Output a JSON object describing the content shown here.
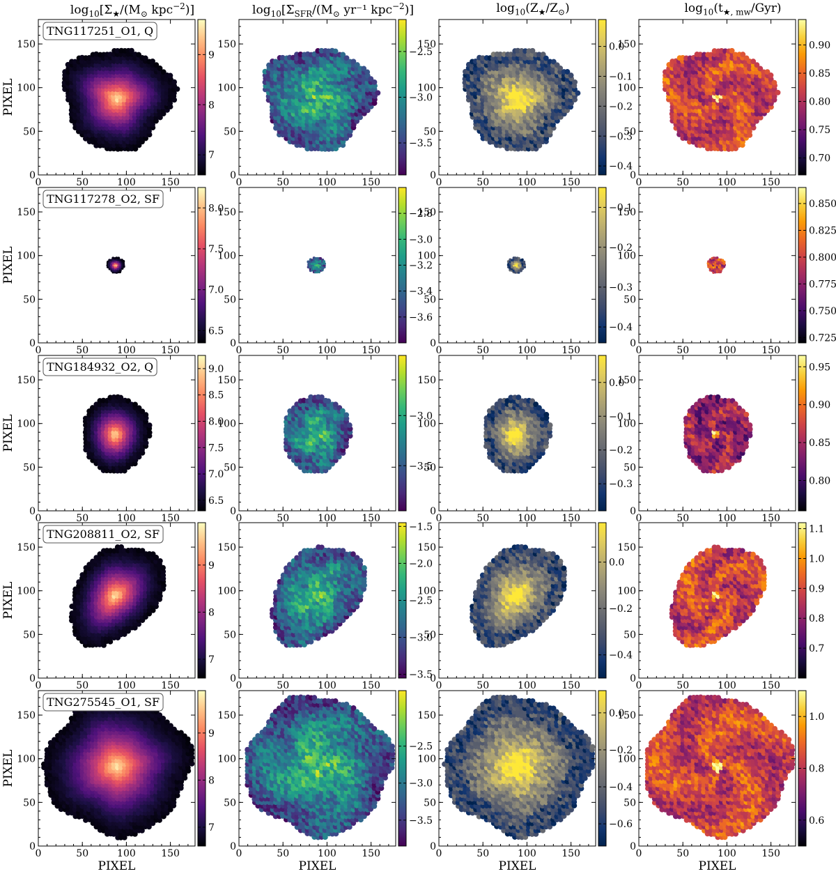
{
  "chart_data": {
    "type": "heatmap",
    "title": "",
    "xlabel": "PIXEL",
    "ylabel": "PIXEL",
    "xlim": [
      0,
      178
    ],
    "ylim": [
      0,
      178
    ],
    "x_ticks": [
      0,
      50,
      100,
      150
    ],
    "y_ticks": [
      0,
      50,
      100,
      150
    ],
    "columns": [
      {
        "id": "mass",
        "pre": "log",
        "sub": "10",
        "mid": "[Σ",
        "star": "★",
        "rest": "/(M",
        "sun": "⊙",
        "tail": " kpc",
        "sup": "−2",
        "end": ")]",
        "cmap": "magma"
      },
      {
        "id": "sfr",
        "pre": "log",
        "sub": "10",
        "mid": "[Σ",
        "star": "SFR",
        "rest": "/(M",
        "sun": "⊙",
        "tail": " yr⁻¹ kpc",
        "sup": "−2",
        "end": ")]",
        "cmap": "viridis"
      },
      {
        "id": "metal",
        "pre": "log",
        "sub": "10",
        "mid": "(Z",
        "star": "★",
        "rest": "/Z",
        "sun": "⊙",
        "tail": "",
        "sup": "",
        "end": ")",
        "cmap": "cividis"
      },
      {
        "id": "age",
        "pre": "log",
        "sub": "10",
        "mid": "(t",
        "star": "★, mw",
        "rest": "/Gyr",
        "sun": "",
        "tail": "",
        "sup": "",
        "end": ")",
        "cmap": "inferno"
      }
    ],
    "rows": [
      {
        "label": "TNG117251_O1, Q",
        "galaxy": {
          "cx": 90,
          "cy": 88,
          "rx": 62,
          "ry": 58,
          "tilt": 0,
          "bumps": [
            [
              3,
              0.08,
              0.4
            ],
            [
              5,
              0.05,
              1.2
            ]
          ]
        },
        "colorbars": [
          {
            "range": [
              6.6,
              9.7
            ],
            "ticks": [
              7,
              8,
              9
            ],
            "tick_labels": [
              "7",
              "8",
              "9"
            ]
          },
          {
            "range": [
              -3.85,
              -2.15
            ],
            "ticks": [
              -2.5,
              -3.0,
              -3.5
            ],
            "tick_labels": [
              "−2.5",
              "−3.0",
              "−3.5"
            ]
          },
          {
            "range": [
              -0.43,
              0.09
            ],
            "ticks": [
              0.0,
              -0.1,
              -0.2,
              -0.3,
              -0.4
            ],
            "tick_labels": [
              "0.0",
              "−0.1",
              "−0.2",
              "−0.3",
              "−0.4"
            ]
          },
          {
            "range": [
              0.67,
              0.945
            ],
            "ticks": [
              0.9,
              0.85,
              0.8,
              0.75,
              0.7
            ],
            "tick_labels": [
              "0.90",
              "0.85",
              "0.80",
              "0.75",
              "0.70"
            ]
          }
        ]
      },
      {
        "label": "TNG117278_O2, SF",
        "galaxy": {
          "cx": 88,
          "cy": 89,
          "rx": 10,
          "ry": 9,
          "tilt": 0,
          "bumps": [
            [
              3,
              0.05,
              0.2
            ]
          ]
        },
        "colorbars": [
          {
            "range": [
              6.35,
              8.25
            ],
            "ticks": [
              8.0,
              7.5,
              7.0,
              6.5
            ],
            "tick_labels": [
              "8.0",
              "7.5",
              "7.0",
              "6.5"
            ]
          },
          {
            "range": [
              -3.8,
              -2.6
            ],
            "ticks": [
              -2.8,
              -3.0,
              -3.2,
              -3.4,
              -3.6
            ],
            "tick_labels": [
              "−2.8",
              "−3.0",
              "−3.2",
              "−3.4",
              "−3.6"
            ]
          },
          {
            "range": [
              -0.44,
              -0.05
            ],
            "ticks": [
              -0.1,
              -0.2,
              -0.3,
              -0.4
            ],
            "tick_labels": [
              "−0.1",
              "−0.2",
              "−0.3",
              "−0.4"
            ]
          },
          {
            "range": [
              0.72,
              0.865
            ],
            "ticks": [
              0.85,
              0.825,
              0.8,
              0.775,
              0.75,
              0.725
            ],
            "tick_labels": [
              "0.850",
              "0.825",
              "0.800",
              "0.775",
              "0.750",
              "0.725"
            ]
          }
        ]
      },
      {
        "label": "TNG184932_O2, Q",
        "galaxy": {
          "cx": 88,
          "cy": 88,
          "rx": 38,
          "ry": 44,
          "tilt": -0.1,
          "bumps": [
            [
              3,
              0.03,
              0.3
            ]
          ]
        },
        "colorbars": [
          {
            "range": [
              6.3,
              9.25
            ],
            "ticks": [
              9.0,
              8.5,
              8.0,
              7.5,
              7.0,
              6.5
            ],
            "tick_labels": [
              "9.0",
              "8.5",
              "8.0",
              "7.5",
              "7.0",
              "6.5"
            ]
          },
          {
            "range": [
              -3.95,
              -2.4
            ],
            "ticks": [
              -3.0,
              -3.5
            ],
            "tick_labels": [
              "−3.0",
              "−3.5"
            ]
          },
          {
            "range": [
              -0.38,
              0.08
            ],
            "ticks": [
              0.0,
              -0.1,
              -0.2,
              -0.3
            ],
            "tick_labels": [
              "0.0",
              "−0.1",
              "−0.2",
              "−0.3"
            ]
          },
          {
            "range": [
              0.76,
              0.965
            ],
            "ticks": [
              0.95,
              0.9,
              0.85,
              0.8
            ],
            "tick_labels": [
              "0.95",
              "0.90",
              "0.85",
              "0.80"
            ]
          }
        ]
      },
      {
        "label": "TNG208811_O2, SF",
        "galaxy": {
          "cx": 88,
          "cy": 95,
          "rx": 42,
          "ry": 68,
          "tilt": -0.45,
          "bumps": [
            [
              2,
              0.12,
              0.8
            ],
            [
              3,
              0.06,
              0.1
            ]
          ]
        },
        "colorbars": [
          {
            "range": [
              6.6,
              9.9
            ],
            "ticks": [
              9,
              8,
              7
            ],
            "tick_labels": [
              "9",
              "8",
              "7"
            ]
          },
          {
            "range": [
              -3.55,
              -1.45
            ],
            "ticks": [
              -1.5,
              -2.0,
              -2.5,
              -3.0,
              -3.5
            ],
            "tick_labels": [
              "−1.5",
              "−2.0",
              "−2.5",
              "−3.0",
              "−3.5"
            ]
          },
          {
            "range": [
              -0.5,
              0.17
            ],
            "ticks": [
              0.0,
              -0.2,
              -0.4
            ],
            "tick_labels": [
              "0.0",
              "−0.2",
              "−0.4"
            ]
          },
          {
            "range": [
              0.6,
              1.12
            ],
            "ticks": [
              1.1,
              1.0,
              0.9,
              0.8,
              0.7
            ],
            "tick_labels": [
              "1.1",
              "1.0",
              "0.9",
              "0.8",
              "0.7"
            ]
          }
        ]
      },
      {
        "label": "TNG275545_O1, SF",
        "galaxy": {
          "cx": 90,
          "cy": 92,
          "rx": 82,
          "ry": 78,
          "tilt": 0,
          "bumps": [
            [
              4,
              0.05,
              0.6
            ],
            [
              7,
              0.03,
              0.2
            ]
          ]
        },
        "colorbars": [
          {
            "range": [
              6.6,
              9.9
            ],
            "ticks": [
              9,
              8,
              7
            ],
            "tick_labels": [
              "9",
              "8",
              "7"
            ]
          },
          {
            "range": [
              -3.85,
              -1.75
            ],
            "ticks": [
              -2.5,
              -3.0,
              -3.5
            ],
            "tick_labels": [
              "−2.5",
              "−3.0",
              "−3.5"
            ]
          },
          {
            "range": [
              -0.72,
              0.12
            ],
            "ticks": [
              0.0,
              -0.2,
              -0.4,
              -0.6
            ],
            "tick_labels": [
              "0.0",
              "−0.2",
              "−0.4",
              "−0.6"
            ]
          },
          {
            "range": [
              0.5,
              1.1
            ],
            "ticks": [
              1.0,
              0.8,
              0.6
            ],
            "tick_labels": [
              "1.0",
              "0.8",
              "0.6"
            ]
          }
        ]
      }
    ]
  }
}
